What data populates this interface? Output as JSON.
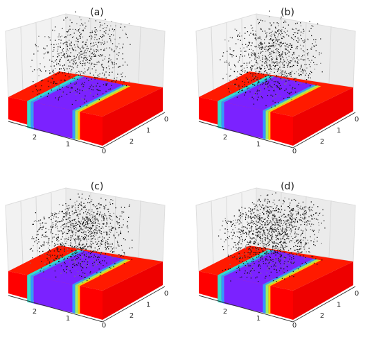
{
  "panels": [
    {
      "label": "(a)",
      "front_ticks": [
        "2",
        "1",
        "0"
      ],
      "side_ticks": [
        "0",
        "1",
        "2"
      ]
    },
    {
      "label": "(b)",
      "front_ticks": [
        "2",
        "1",
        "0"
      ],
      "side_ticks": [
        "0",
        "1",
        "2"
      ]
    },
    {
      "label": "(c)",
      "front_ticks": [
        "2",
        "1",
        "0"
      ],
      "side_ticks": [
        "0",
        "1",
        "2"
      ]
    },
    {
      "label": "(d)",
      "front_ticks": [
        "2",
        "1",
        "0"
      ],
      "side_ticks": [
        "0",
        "1",
        "2"
      ]
    }
  ]
}
